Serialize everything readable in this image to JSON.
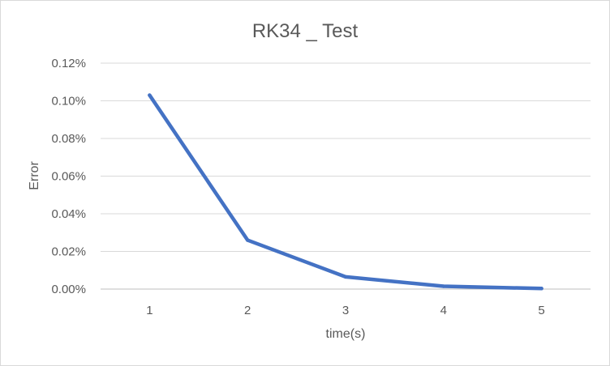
{
  "chart_data": {
    "type": "line",
    "title": "RK34 _ Test",
    "xlabel": "time(s)",
    "ylabel": "Error",
    "categories": [
      "1",
      "2",
      "3",
      "4",
      "5"
    ],
    "series": [
      {
        "values": [
          0.00103,
          0.00026,
          6.5e-05,
          1.5e-05,
          3e-06
        ]
      }
    ],
    "ylim": [
      0,
      0.0012
    ],
    "yticks": [
      0,
      0.0002,
      0.0004,
      0.0006,
      0.0008,
      0.001,
      0.0012
    ],
    "ytick_labels": [
      "0.00%",
      "0.02%",
      "0.04%",
      "0.06%",
      "0.08%",
      "0.10%",
      "0.12%"
    ],
    "grid": true,
    "legend": "none",
    "colors": {
      "line": "#4472c4",
      "grid": "#d9d9d9",
      "axis": "#bfbfbf",
      "text": "#595959"
    }
  }
}
